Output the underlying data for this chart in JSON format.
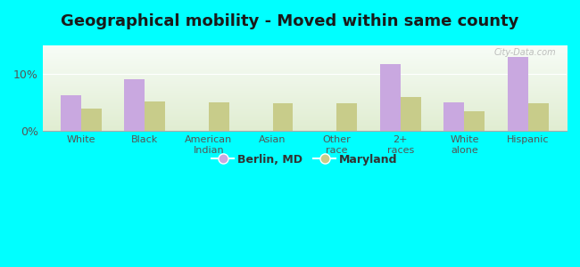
{
  "title": "Geographical mobility - Moved within same county",
  "categories": [
    "White",
    "Black",
    "American\nIndian",
    "Asian",
    "Other\nrace",
    "2+\nraces",
    "White\nalone",
    "Hispanic"
  ],
  "berlin_values": [
    6.2,
    9.1,
    0.0,
    0.0,
    0.0,
    11.8,
    5.0,
    13.0
  ],
  "maryland_values": [
    3.9,
    5.1,
    5.0,
    4.8,
    4.8,
    6.0,
    3.5,
    4.8
  ],
  "berlin_color": "#c9a8e0",
  "maryland_color": "#c8cc8a",
  "background_color": "#00ffff",
  "ylim": [
    0,
    15
  ],
  "yticks": [
    0,
    10
  ],
  "ytick_labels": [
    "0%",
    "10%"
  ],
  "bar_width": 0.32,
  "legend_berlin": "Berlin, MD",
  "legend_maryland": "Maryland",
  "title_fontsize": 13,
  "watermark": "City-Data.com"
}
